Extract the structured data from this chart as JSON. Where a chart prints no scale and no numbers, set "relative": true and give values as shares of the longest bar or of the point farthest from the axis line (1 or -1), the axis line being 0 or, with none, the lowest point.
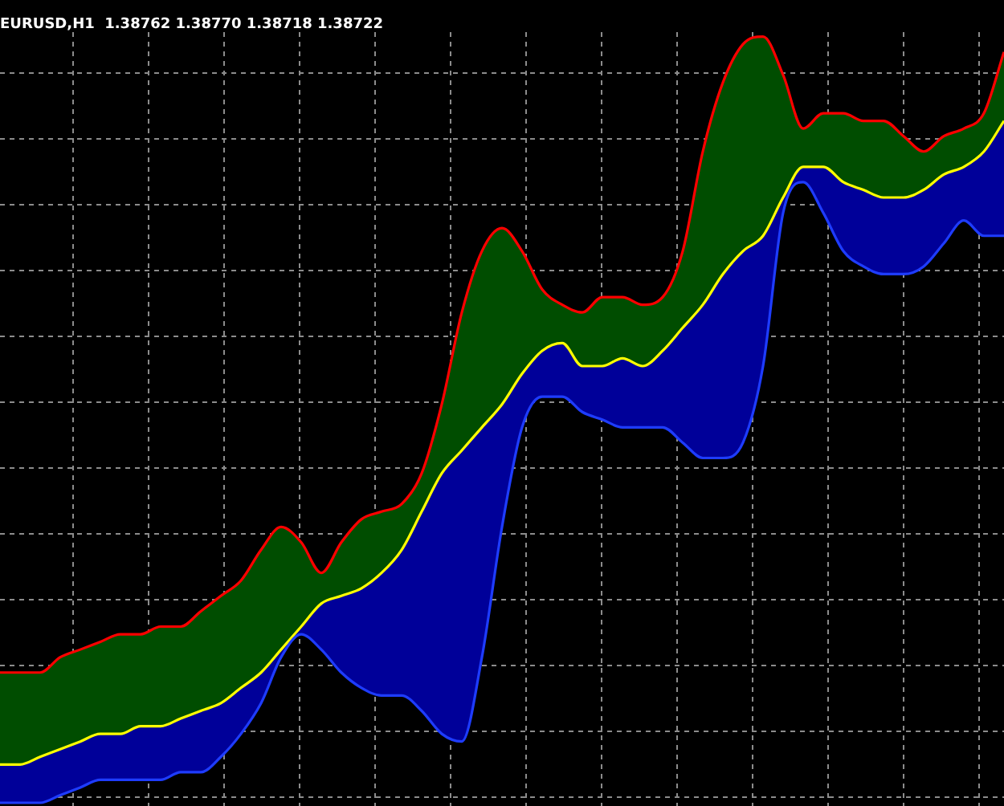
{
  "chart_data": {
    "type": "area",
    "title": "EURUSD,H1  1.38762 1.38770 1.38718 1.38722",
    "relative": true,
    "grid": true,
    "legend": false,
    "categories": [
      null,
      null,
      null,
      null,
      null,
      null,
      null,
      null,
      null,
      null,
      null,
      null,
      null,
      null,
      null,
      null,
      null,
      null,
      null,
      null,
      null,
      null,
      null,
      null,
      null,
      null,
      null,
      null,
      null,
      null,
      null,
      null,
      null,
      null,
      null,
      null,
      null,
      null,
      null,
      null,
      null,
      null,
      null,
      null,
      null,
      null,
      null,
      null,
      null,
      null,
      null
    ],
    "series": [
      {
        "type": "area",
        "color": "#004d00",
        "values": [
          0.17,
          0.17,
          0.17,
          0.19,
          0.2,
          0.21,
          0.22,
          0.22,
          0.23,
          0.23,
          0.25,
          0.27,
          0.29,
          0.33,
          0.36,
          0.34,
          0.3,
          0.34,
          0.37,
          0.38,
          0.39,
          0.43,
          0.52,
          0.64,
          0.72,
          0.75,
          0.72,
          0.67,
          0.65,
          0.64,
          0.66,
          0.66,
          0.65,
          0.66,
          0.72,
          0.85,
          0.94,
          0.99,
          1,
          0.95,
          0.88,
          0.9,
          0.9,
          0.89,
          0.89,
          0.87,
          0.85,
          0.87,
          0.88,
          0.9,
          0.98
        ]
      },
      {
        "type": "area",
        "color": "#000099",
        "values": [
          0.05,
          0.05,
          0.06,
          0.07,
          0.08,
          0.09,
          0.09,
          0.1,
          0.1,
          0.11,
          0.12,
          0.13,
          0.15,
          0.17,
          0.2,
          0.23,
          0.26,
          0.27,
          0.28,
          0.3,
          0.33,
          0.38,
          0.43,
          0.46,
          0.49,
          0.52,
          0.56,
          0.59,
          0.6,
          0.57,
          0.57,
          0.58,
          0.57,
          0.59,
          0.62,
          0.65,
          0.69,
          0.72,
          0.74,
          0.79,
          0.83,
          0.83,
          0.81,
          0.8,
          0.79,
          0.79,
          0.8,
          0.82,
          0.83,
          0.85,
          0.89
        ]
      },
      {
        "type": "line",
        "color": "#1e3cff",
        "values": [
          0,
          0,
          0,
          0.01,
          0.02,
          0.03,
          0.03,
          0.03,
          0.03,
          0.04,
          0.04,
          0.06,
          0.09,
          0.13,
          0.19,
          0.22,
          0.2,
          0.17,
          0.15,
          0.14,
          0.14,
          0.12,
          0.09,
          0.08,
          0.19,
          0.36,
          0.49,
          0.53,
          0.53,
          0.51,
          0.5,
          0.49,
          0.49,
          0.49,
          0.47,
          0.45,
          0.45,
          0.47,
          0.57,
          0.77,
          0.81,
          0.77,
          0.72,
          0.7,
          0.69,
          0.69,
          0.7,
          0.73,
          0.76,
          0.74,
          0.74
        ]
      },
      {
        "type": "line",
        "color": "#ff0000",
        "values": [
          0.17,
          0.17,
          0.17,
          0.19,
          0.2,
          0.21,
          0.22,
          0.22,
          0.23,
          0.23,
          0.25,
          0.27,
          0.29,
          0.33,
          0.36,
          0.34,
          0.3,
          0.34,
          0.37,
          0.38,
          0.39,
          0.43,
          0.52,
          0.64,
          0.72,
          0.75,
          0.72,
          0.67,
          0.65,
          0.64,
          0.66,
          0.66,
          0.65,
          0.66,
          0.72,
          0.85,
          0.94,
          0.99,
          1,
          0.95,
          0.88,
          0.9,
          0.9,
          0.89,
          0.89,
          0.87,
          0.85,
          0.87,
          0.88,
          0.9,
          0.98
        ]
      },
      {
        "type": "line",
        "color": "#ffff00",
        "values": [
          0.05,
          0.05,
          0.06,
          0.07,
          0.08,
          0.09,
          0.09,
          0.1,
          0.1,
          0.11,
          0.12,
          0.13,
          0.15,
          0.17,
          0.2,
          0.23,
          0.26,
          0.27,
          0.28,
          0.3,
          0.33,
          0.38,
          0.43,
          0.46,
          0.49,
          0.52,
          0.56,
          0.59,
          0.6,
          0.57,
          0.57,
          0.58,
          0.57,
          0.59,
          0.62,
          0.65,
          0.69,
          0.72,
          0.74,
          0.79,
          0.83,
          0.83,
          0.81,
          0.8,
          0.79,
          0.79,
          0.8,
          0.82,
          0.83,
          0.85,
          0.89
        ]
      }
    ]
  }
}
